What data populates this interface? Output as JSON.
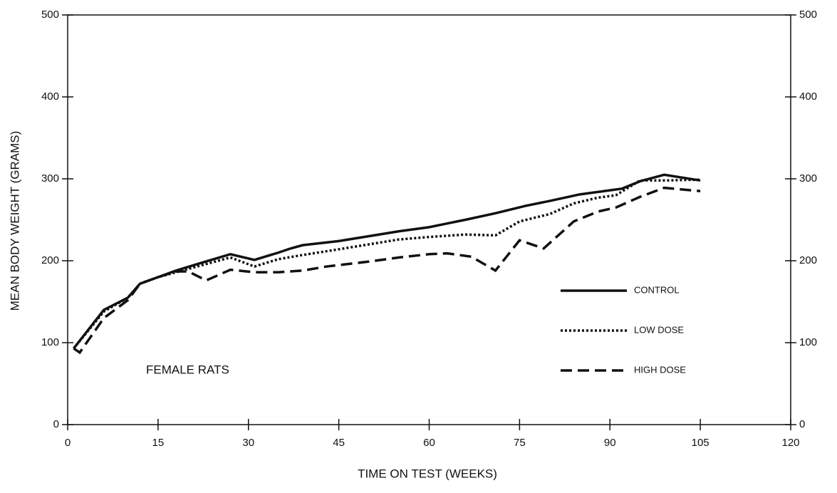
{
  "chart_data": {
    "type": "line",
    "xlabel": "TIME ON TEST (WEEKS)",
    "ylabel": "MEAN BODY WEIGHT (GRAMS)",
    "annotation": "FEMALE RATS",
    "xlim": [
      0,
      120
    ],
    "xticks": [
      0,
      15,
      30,
      45,
      60,
      75,
      90,
      105,
      120
    ],
    "ylim": [
      0,
      500
    ],
    "yticks": [
      0,
      100,
      200,
      300,
      400,
      500
    ],
    "right_axis": true,
    "legend": "right",
    "series": [
      {
        "name": "CONTROL",
        "color": "#111111",
        "style": "solid",
        "x": [
          1,
          6,
          10,
          12,
          15,
          18,
          22,
          27,
          31,
          35,
          37,
          39,
          45,
          50,
          55,
          60,
          66,
          71,
          76,
          80,
          85,
          90,
          92,
          95,
          99,
          105
        ],
        "values": [
          93,
          140,
          155,
          172,
          180,
          188,
          197,
          208,
          201,
          210,
          215,
          219,
          224,
          230,
          236,
          241,
          250,
          258,
          267,
          273,
          281,
          286,
          288,
          297,
          305,
          298
        ]
      },
      {
        "name": "LOW DOSE",
        "color": "#111111",
        "style": "dotted",
        "x": [
          1,
          6,
          10,
          12,
          15,
          18,
          22,
          27,
          31,
          35,
          39,
          45,
          50,
          55,
          60,
          66,
          71,
          75,
          80,
          84,
          88,
          91,
          95,
          99,
          105
        ],
        "values": [
          93,
          138,
          155,
          172,
          180,
          186,
          194,
          204,
          193,
          202,
          207,
          214,
          220,
          226,
          229,
          232,
          231,
          248,
          257,
          270,
          277,
          280,
          298,
          298,
          299
        ]
      },
      {
        "name": "HIGH DOSE",
        "color": "#111111",
        "style": "dashed",
        "x": [
          1,
          2,
          6,
          10,
          12,
          15,
          18,
          20,
          23,
          27,
          31,
          35,
          39,
          43,
          50,
          55,
          60,
          63,
          67,
          71,
          75,
          79,
          84,
          88,
          91,
          95,
          99,
          105
        ],
        "values": [
          93,
          88,
          130,
          152,
          172,
          180,
          187,
          187,
          176,
          189,
          186,
          186,
          188,
          193,
          199,
          204,
          208,
          209,
          205,
          188,
          225,
          215,
          248,
          260,
          265,
          278,
          289,
          285
        ]
      }
    ]
  }
}
